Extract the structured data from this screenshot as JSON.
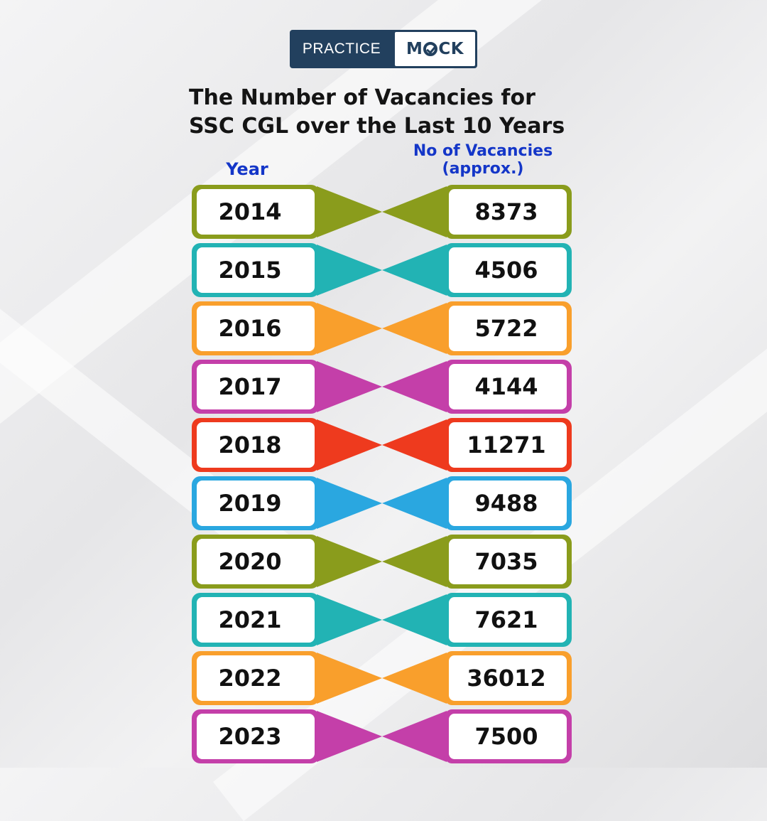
{
  "brand": {
    "left_text": "PRACTICE",
    "right_text_before": "M",
    "right_text_after": "CK",
    "color": "#22405e"
  },
  "title_line1": "The Number of Vacancies for",
  "title_line2": "SSC CGL over the Last 10 Years",
  "col_year_label": "Year",
  "col_vac_label_line1": "No of Vacancies",
  "col_vac_label_line2": "(approx.)",
  "chart_data": {
    "type": "table",
    "title": "The Number of Vacancies for SSC CGL over the Last 10 Years",
    "columns": [
      "Year",
      "No of Vacancies (approx.)"
    ],
    "rows": [
      {
        "year": "2014",
        "vacancies": 8373,
        "color": "#8a9c1c"
      },
      {
        "year": "2015",
        "vacancies": 4506,
        "color": "#22b3b4"
      },
      {
        "year": "2016",
        "vacancies": 5722,
        "color": "#f99f2c"
      },
      {
        "year": "2017",
        "vacancies": 4144,
        "color": "#c43fa9"
      },
      {
        "year": "2018",
        "vacancies": 11271,
        "color": "#ee3a1e"
      },
      {
        "year": "2019",
        "vacancies": 9488,
        "color": "#2aa7e0"
      },
      {
        "year": "2020",
        "vacancies": 7035,
        "color": "#8a9c1c"
      },
      {
        "year": "2021",
        "vacancies": 7621,
        "color": "#22b3b4"
      },
      {
        "year": "2022",
        "vacancies": 36012,
        "color": "#f99f2c"
      },
      {
        "year": "2023",
        "vacancies": 7500,
        "color": "#c43fa9"
      }
    ]
  }
}
